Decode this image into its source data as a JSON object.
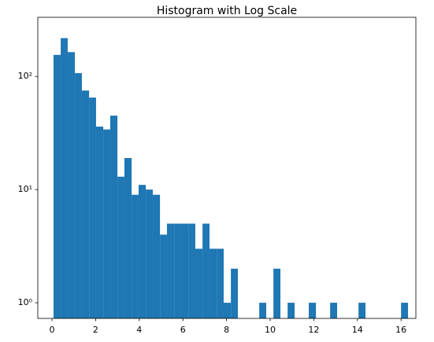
{
  "chart_data": {
    "type": "histogram",
    "title": "Histogram with Log Scale",
    "color": "#1f77b4",
    "log_y": true,
    "bins": [
      0.07,
      0.4,
      0.72,
      1.05,
      1.37,
      1.7,
      2.02,
      2.35,
      2.67,
      3.0,
      3.32,
      3.65,
      3.97,
      4.3,
      4.62,
      4.95,
      5.27,
      5.6,
      5.92,
      6.25,
      6.57,
      6.9,
      7.22,
      7.55,
      7.87,
      8.2,
      8.52,
      8.85,
      9.17,
      9.5,
      9.82,
      10.15,
      10.47,
      10.8,
      11.12,
      11.45,
      11.77,
      12.1,
      12.42,
      12.75,
      13.07,
      13.4,
      13.72,
      14.05,
      14.37,
      14.7,
      15.02,
      15.35,
      15.67,
      16.0,
      16.32
    ],
    "values": [
      155,
      218,
      164,
      107,
      75,
      65,
      36,
      34,
      45,
      13,
      19,
      9,
      11,
      10,
      9,
      4,
      5,
      5,
      5,
      5,
      3,
      5,
      3,
      3,
      1,
      2,
      0,
      0,
      0,
      1,
      0,
      2,
      0,
      1,
      0,
      0,
      1,
      0,
      0,
      1,
      0,
      0,
      0,
      1,
      0,
      0,
      0,
      0,
      0,
      1
    ],
    "xlim": [
      -0.65,
      16.68
    ],
    "xticks": [
      0,
      2,
      4,
      6,
      8,
      10,
      12,
      14,
      16
    ],
    "ylim": [
      0.727,
      333
    ],
    "yticks": [
      {
        "value": 1,
        "label": "10⁰"
      },
      {
        "value": 10,
        "label": "10¹"
      },
      {
        "value": 100,
        "label": "10²"
      }
    ]
  }
}
